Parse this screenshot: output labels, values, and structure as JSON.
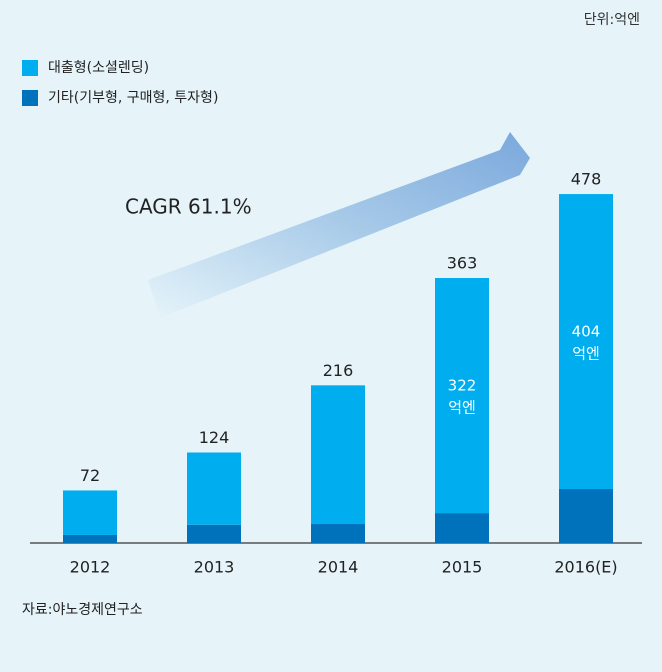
{
  "chart_data": {
    "type": "stacked_bar",
    "unit_note": "단위:억엔",
    "annotation": "CAGR  61.1%",
    "source": "자료:야노경제연구소",
    "categories": [
      "2012",
      "2013",
      "2014",
      "2015",
      "2016(E)"
    ],
    "series": [
      {
        "name": "기타(기부형, 구매형, 투자형)",
        "color": "#0072bc",
        "values": [
          11,
          25,
          26,
          41,
          74
        ]
      },
      {
        "name": "대출형(소셜렌딩)",
        "color": "#00aeef",
        "values": [
          61,
          99,
          190,
          322,
          404
        ],
        "value_labels": [
          null,
          null,
          null,
          "322\n억엔",
          "404\n억엔"
        ]
      }
    ],
    "totals": [
      72,
      124,
      216,
      363,
      478
    ],
    "ylim": [
      0,
      500
    ]
  }
}
